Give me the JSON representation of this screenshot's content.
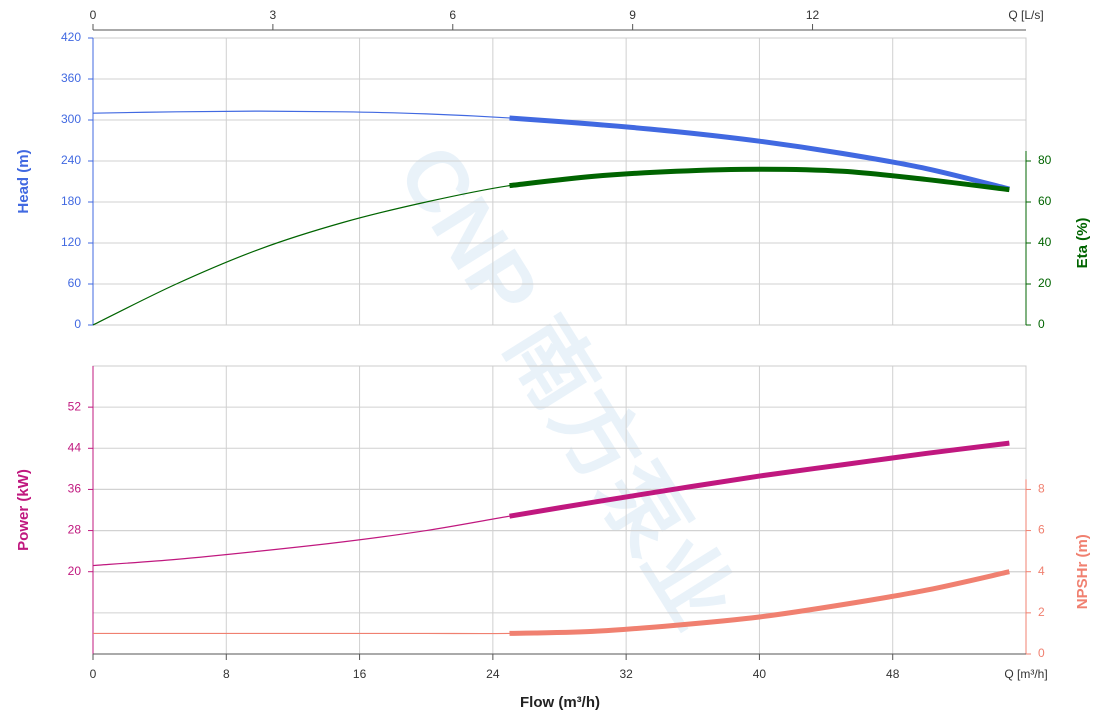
{
  "chart_data": [
    {
      "type": "line",
      "x": [
        0,
        5,
        10,
        15,
        20,
        25,
        30,
        35,
        40,
        45,
        50,
        55
      ],
      "xlim": [
        0,
        56
      ],
      "xticks": [
        0,
        8,
        16,
        24,
        32,
        40,
        48
      ],
      "top_xlim": [
        0,
        15.56
      ],
      "top_xticks": [
        0,
        3,
        6,
        9,
        12
      ],
      "top_x_label": "Q [L/s]",
      "ylim": [
        0,
        420
      ],
      "yticks": [
        0,
        60,
        120,
        180,
        240,
        300,
        360,
        420
      ],
      "y_label": "Head (m)",
      "y_color": "#4169e1",
      "y2lim": [
        0,
        140
      ],
      "y2ticks": [
        0,
        20,
        40,
        60,
        80
      ],
      "y2_label": "Eta (%)",
      "y2_color": "#006400",
      "thick_from": 25,
      "grid": true,
      "series": [
        {
          "color": "#4169e1",
          "values": [
            310,
            312,
            313,
            312,
            309,
            303,
            294,
            283,
            269,
            251,
            229,
            199
          ]
        },
        {
          "color": "#006400",
          "axis": "y2",
          "values": [
            0,
            20,
            37,
            50,
            60,
            68,
            72.5,
            75,
            76,
            75,
            71,
            66
          ]
        }
      ]
    },
    {
      "type": "line",
      "x": [
        0,
        5,
        10,
        15,
        20,
        25,
        30,
        35,
        40,
        45,
        50,
        55
      ],
      "xlim": [
        0,
        56
      ],
      "xticks": [
        0,
        8,
        16,
        24,
        32,
        40,
        48
      ],
      "x_label": "Flow (m³/h)",
      "x_unit_label": "Q [m³/h]",
      "ylim": [
        4,
        60
      ],
      "yticks": [
        20,
        28,
        36,
        44,
        52
      ],
      "y_label": "Power (kW)",
      "y_color": "#c0187f",
      "y2lim": [
        0,
        14
      ],
      "y2ticks": [
        0,
        2,
        4,
        6,
        8
      ],
      "y2_label": "NPSHr (m)",
      "y2_color": "#f08070",
      "thick_from": 25,
      "grid": true,
      "series": [
        {
          "color": "#c0187f",
          "values": [
            21.2,
            22.4,
            24.0,
            25.8,
            28.0,
            30.8,
            33.5,
            36.1,
            38.6,
            40.8,
            43.0,
            45.0
          ]
        },
        {
          "color": "#f08070",
          "axis": "y2",
          "values": [
            1,
            1,
            1,
            1,
            1,
            1,
            1.1,
            1.4,
            1.8,
            2.4,
            3.1,
            4.0
          ]
        }
      ]
    }
  ],
  "watermark": "CNP 南方泵业"
}
